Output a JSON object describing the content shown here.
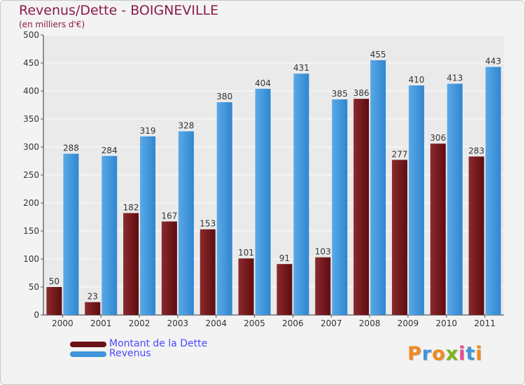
{
  "header": {
    "title": "Revenus/Dette - BOIGNEVILLE",
    "subtitle": "(en milliers d'€)"
  },
  "colors": {
    "dette": "#6b1014",
    "revenus": "#3f94db",
    "title": "#8b1a4a",
    "legend_text": "#4a4aff"
  },
  "chart_data": {
    "type": "bar",
    "title": "Revenus/Dette - BOIGNEVILLE",
    "ylabel": "(en milliers d'€)",
    "xlabel": "",
    "categories": [
      "2000",
      "2001",
      "2002",
      "2003",
      "2004",
      "2005",
      "2006",
      "2007",
      "2008",
      "2009",
      "2010",
      "2011"
    ],
    "series": [
      {
        "name": "Montant de la Dette",
        "values": [
          50,
          23,
          182,
          167,
          153,
          101,
          91,
          103,
          386,
          277,
          306,
          283
        ]
      },
      {
        "name": "Revenus",
        "values": [
          288,
          284,
          319,
          328,
          380,
          404,
          431,
          385,
          455,
          410,
          413,
          443
        ]
      }
    ],
    "ylim": [
      0,
      500
    ],
    "yticks": [
      0,
      50,
      100,
      150,
      200,
      250,
      300,
      350,
      400,
      450,
      500
    ],
    "grid": true,
    "legend": "bottom-left"
  },
  "legend": {
    "items": [
      {
        "label": "Montant de la Dette",
        "color": "#6b1014"
      },
      {
        "label": "Revenus",
        "color": "#3f94db"
      }
    ]
  },
  "logo": {
    "letters": [
      "P",
      "r",
      "o",
      "x",
      "i",
      "t",
      "i"
    ],
    "colors": [
      "#f08a1c",
      "#3f94db",
      "#f08a1c",
      "#7ab51d",
      "#e84a8f",
      "#3f94db",
      "#f08a1c"
    ]
  }
}
